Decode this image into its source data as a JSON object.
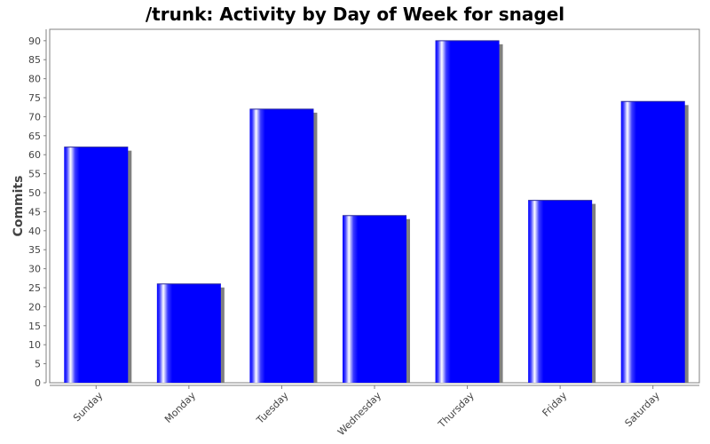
{
  "chart_data": {
    "type": "bar",
    "title": "/trunk: Activity by Day of Week for snagel",
    "xlabel": "",
    "ylabel": "Commits",
    "categories": [
      "Sunday",
      "Monday",
      "Tuesday",
      "Wednesday",
      "Thursday",
      "Friday",
      "Saturday"
    ],
    "values": [
      62,
      26,
      72,
      44,
      90,
      48,
      74
    ],
    "ylim": [
      0,
      93
    ],
    "yticks": [
      "0",
      "5",
      "10",
      "15",
      "20",
      "25",
      "30",
      "35",
      "40",
      "45",
      "50",
      "55",
      "60",
      "65",
      "70",
      "75",
      "80",
      "85",
      "90"
    ],
    "grid": false,
    "legend": "none",
    "colors": {
      "bar": "#0000ff",
      "bar_highlight": "#ffffff",
      "shadow": "#808080",
      "axis": "#808080",
      "plot_border": "#808080",
      "text": "#444444"
    }
  }
}
